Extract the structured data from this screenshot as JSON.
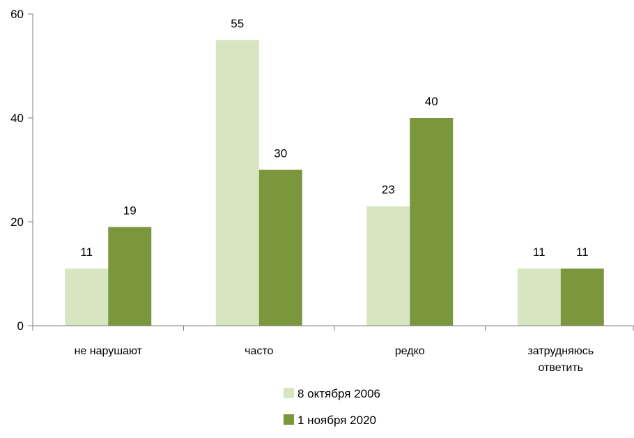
{
  "chart_data": {
    "type": "bar",
    "title": "",
    "xlabel": "",
    "ylabel": "",
    "ylim": [
      0,
      60
    ],
    "yticks": [
      0,
      20,
      40,
      60
    ],
    "grid": false,
    "legend_position": "bottom",
    "categories": [
      [
        "не нарушают"
      ],
      [
        "часто"
      ],
      [
        "редко"
      ],
      [
        "затрудняюсь",
        "ответить"
      ]
    ],
    "series": [
      {
        "name": "8 октября 2006",
        "color": "#d7e6c1",
        "values": [
          11,
          55,
          23,
          11
        ]
      },
      {
        "name": "1 ноября 2020",
        "color": "#7a973d",
        "values": [
          19,
          30,
          40,
          11
        ]
      }
    ],
    "data_labels": [
      [
        "11",
        "55",
        "23",
        "11"
      ],
      [
        "19",
        "30",
        "40",
        "11"
      ]
    ]
  }
}
